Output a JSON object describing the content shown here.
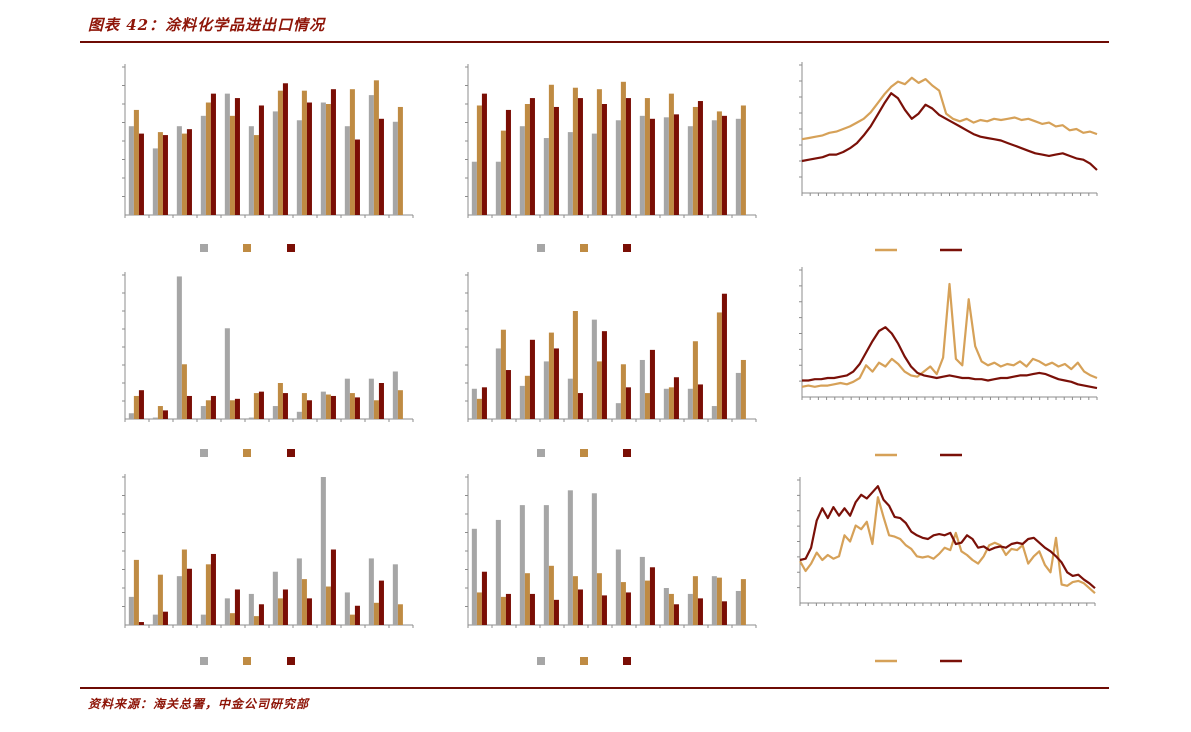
{
  "header": {
    "title": "图表 42：涂料化学品进出口情况"
  },
  "footer": {
    "source": "资料来源：海关总署，中金公司研究部"
  },
  "colors": {
    "gray": "#a6a6a6",
    "tan": "#bf8b43",
    "maroon": "#7a0e05",
    "line_tan": "#d6a158",
    "line_maroon": "#7a1008",
    "axis": "#8c8c8c",
    "title": "#8e1508",
    "rule": "#6e0b04",
    "background": "#ffffff"
  },
  "chart_data": [
    {
      "id": "r1c1-bar",
      "type": "bar",
      "title": "",
      "xlabel": "",
      "ylabel": "",
      "value_scale": "percent of plot height (no axis labels rendered in source)",
      "series": [
        {
          "name": "gray-bars",
          "color": "gray",
          "values": [
            60,
            45,
            60,
            67,
            82,
            60,
            70,
            64,
            76,
            60,
            81,
            63
          ]
        },
        {
          "name": "tan-bars",
          "color": "tan",
          "values": [
            71,
            56,
            55,
            76,
            67,
            54,
            84,
            84,
            75,
            85,
            91,
            73
          ]
        },
        {
          "name": "maroon-bars",
          "color": "maroon",
          "values": [
            55,
            54,
            58,
            82,
            79,
            74,
            89,
            76,
            85,
            51,
            65,
            null
          ]
        }
      ],
      "legend": {
        "style": "squares",
        "colors": [
          "gray",
          "tan",
          "maroon"
        ],
        "labels": [
          "",
          "",
          ""
        ]
      }
    },
    {
      "id": "r1c2-bar",
      "type": "bar",
      "title": "",
      "xlabel": "",
      "ylabel": "",
      "value_scale": "percent of plot height (no axis labels rendered in source)",
      "series": [
        {
          "name": "gray-bars",
          "color": "gray",
          "values": [
            36,
            36,
            60,
            52,
            56,
            55,
            64,
            67,
            66,
            60,
            64,
            65
          ]
        },
        {
          "name": "tan-bars",
          "color": "tan",
          "values": [
            74,
            57,
            75,
            88,
            86,
            85,
            90,
            79,
            82,
            73,
            70,
            74
          ]
        },
        {
          "name": "maroon-bars",
          "color": "maroon",
          "values": [
            82,
            71,
            79,
            73,
            79,
            75,
            79,
            65,
            68,
            77,
            67,
            null
          ]
        }
      ],
      "legend": {
        "style": "squares",
        "colors": [
          "gray",
          "tan",
          "maroon"
        ],
        "labels": [
          "",
          "",
          ""
        ]
      }
    },
    {
      "id": "r1c3-line",
      "type": "line",
      "title": "",
      "xlabel": "",
      "ylabel": "",
      "value_scale": "percent of plot height (no axis labels rendered in source)",
      "series": [
        {
          "name": "tan-line",
          "color": "line_tan",
          "values": [
            42,
            43,
            44,
            45,
            47,
            48,
            50,
            52,
            55,
            58,
            63,
            70,
            77,
            83,
            87,
            85,
            90,
            86,
            89,
            84,
            80,
            62,
            58,
            56,
            58,
            55,
            57,
            56,
            58,
            57,
            58,
            59,
            57,
            58,
            56,
            54,
            55,
            52,
            53,
            49,
            50,
            47,
            48,
            46
          ]
        },
        {
          "name": "maroon-line",
          "color": "line_maroon",
          "values": [
            25,
            26,
            27,
            28,
            30,
            30,
            32,
            35,
            39,
            45,
            52,
            61,
            70,
            78,
            74,
            65,
            58,
            62,
            69,
            66,
            61,
            58,
            55,
            52,
            49,
            46,
            44,
            43,
            42,
            41,
            39,
            37,
            35,
            33,
            31,
            30,
            29,
            30,
            31,
            29,
            27,
            26,
            23,
            18
          ]
        }
      ],
      "legend": {
        "style": "lines",
        "colors": [
          "line_tan",
          "line_maroon"
        ],
        "labels": [
          "",
          ""
        ]
      }
    },
    {
      "id": "r2c1-bar",
      "type": "bar",
      "title": "",
      "xlabel": "",
      "ylabel": "",
      "value_scale": "percent of plot height (no axis labels rendered in source)",
      "series": [
        {
          "name": "gray-bars",
          "color": "gray",
          "values": [
            4,
            1,
            99,
            9,
            63,
            1,
            9,
            5,
            19,
            28,
            28,
            33
          ]
        },
        {
          "name": "tan-bars",
          "color": "tan",
          "values": [
            16,
            9,
            38,
            13,
            13,
            18,
            25,
            18,
            17,
            18,
            13,
            20
          ]
        },
        {
          "name": "maroon-bars",
          "color": "maroon",
          "values": [
            20,
            6,
            16,
            16,
            14,
            19,
            18,
            13,
            16,
            15,
            25,
            null
          ]
        }
      ],
      "legend": {
        "style": "squares",
        "colors": [
          "gray",
          "tan",
          "maroon"
        ],
        "labels": [
          "",
          "",
          ""
        ]
      }
    },
    {
      "id": "r2c2-bar",
      "type": "bar",
      "title": "",
      "xlabel": "",
      "ylabel": "",
      "value_scale": "percent of plot height (no axis labels rendered in source)",
      "series": [
        {
          "name": "gray-bars",
          "color": "gray",
          "values": [
            21,
            49,
            23,
            40,
            28,
            69,
            11,
            41,
            21,
            21,
            9,
            32
          ]
        },
        {
          "name": "tan-bars",
          "color": "tan",
          "values": [
            14,
            62,
            30,
            60,
            75,
            40,
            38,
            18,
            22,
            54,
            74,
            41
          ]
        },
        {
          "name": "maroon-bars",
          "color": "maroon",
          "values": [
            22,
            34,
            55,
            49,
            18,
            61,
            22,
            48,
            29,
            24,
            87,
            null
          ]
        }
      ],
      "legend": {
        "style": "squares",
        "colors": [
          "gray",
          "tan",
          "maroon"
        ],
        "labels": [
          "",
          "",
          ""
        ]
      }
    },
    {
      "id": "r2c3-line",
      "type": "line",
      "title": "",
      "xlabel": "",
      "ylabel": "",
      "value_scale": "percent of plot height (no axis labels rendered in source)",
      "series": [
        {
          "name": "tan-line",
          "color": "line_tan",
          "values": [
            8,
            9,
            8,
            9,
            9,
            10,
            11,
            10,
            12,
            15,
            25,
            20,
            27,
            24,
            30,
            26,
            20,
            17,
            16,
            20,
            24,
            18,
            31,
            89,
            30,
            25,
            77,
            40,
            28,
            25,
            27,
            24,
            26,
            25,
            28,
            24,
            30,
            28,
            25,
            27,
            24,
            26,
            22,
            27,
            20,
            17,
            15
          ]
        },
        {
          "name": "maroon-line",
          "color": "line_maroon",
          "values": [
            13,
            13,
            14,
            14,
            15,
            15,
            16,
            17,
            20,
            26,
            35,
            44,
            52,
            55,
            50,
            42,
            32,
            24,
            19,
            17,
            16,
            15,
            16,
            17,
            16,
            15,
            15,
            14,
            14,
            13,
            14,
            15,
            15,
            16,
            17,
            17,
            18,
            19,
            18,
            16,
            14,
            13,
            12,
            10,
            9,
            8,
            7
          ]
        }
      ],
      "legend": {
        "style": "lines",
        "colors": [
          "line_tan",
          "line_maroon"
        ],
        "labels": [
          "",
          ""
        ]
      }
    },
    {
      "id": "r3c1-bar",
      "type": "bar",
      "title": "",
      "xlabel": "",
      "ylabel": "",
      "value_scale": "percent of plot height (no axis labels rendered in source)",
      "series": [
        {
          "name": "gray-bars",
          "color": "gray",
          "values": [
            19,
            7,
            33,
            7,
            18,
            21,
            36,
            45,
            100,
            22,
            45,
            41
          ]
        },
        {
          "name": "tan-bars",
          "color": "tan",
          "values": [
            44,
            34,
            51,
            41,
            8,
            6,
            18,
            31,
            26,
            7,
            15,
            14
          ]
        },
        {
          "name": "maroon-bars",
          "color": "maroon",
          "values": [
            2,
            9,
            38,
            48,
            24,
            14,
            24,
            18,
            51,
            13,
            30,
            null
          ]
        }
      ],
      "legend": {
        "style": "squares",
        "colors": [
          "gray",
          "tan",
          "maroon"
        ],
        "labels": [
          "",
          "",
          ""
        ]
      }
    },
    {
      "id": "r3c2-bar",
      "type": "bar",
      "title": "",
      "xlabel": "",
      "ylabel": "",
      "value_scale": "percent of plot height (no axis labels rendered in source)",
      "series": [
        {
          "name": "gray-bars",
          "color": "gray",
          "values": [
            65,
            71,
            81,
            81,
            91,
            89,
            51,
            46,
            25,
            21,
            33,
            23
          ]
        },
        {
          "name": "tan-bars",
          "color": "tan",
          "values": [
            22,
            19,
            35,
            40,
            33,
            35,
            29,
            30,
            21,
            33,
            32,
            31
          ]
        },
        {
          "name": "maroon-bars",
          "color": "maroon",
          "values": [
            36,
            21,
            21,
            17,
            24,
            20,
            22,
            39,
            14,
            18,
            16,
            null
          ]
        }
      ],
      "legend": {
        "style": "squares",
        "colors": [
          "gray",
          "tan",
          "maroon"
        ],
        "labels": [
          "",
          "",
          ""
        ]
      }
    },
    {
      "id": "r3c3-line",
      "type": "line",
      "title": "",
      "xlabel": "",
      "ylabel": "",
      "value_scale": "percent of plot height (no axis labels rendered in source)",
      "series": [
        {
          "name": "tan-line",
          "color": "line_tan",
          "values": [
            34,
            26,
            32,
            41,
            35,
            39,
            36,
            38,
            55,
            50,
            63,
            60,
            66,
            48,
            86,
            70,
            55,
            54,
            52,
            47,
            44,
            38,
            37,
            38,
            36,
            40,
            45,
            43,
            57,
            42,
            39,
            35,
            32,
            38,
            47,
            49,
            47,
            39,
            44,
            43,
            47,
            32,
            38,
            42,
            31,
            25,
            53,
            15,
            14,
            17,
            18,
            16,
            12,
            8
          ]
        },
        {
          "name": "maroon-line",
          "color": "line_maroon",
          "values": [
            35,
            36,
            45,
            67,
            77,
            69,
            78,
            71,
            77,
            71,
            82,
            88,
            85,
            90,
            95,
            84,
            79,
            70,
            69,
            65,
            58,
            55,
            53,
            52,
            55,
            56,
            55,
            57,
            48,
            49,
            55,
            52,
            45,
            46,
            43,
            45,
            46,
            45,
            48,
            49,
            48,
            52,
            53,
            49,
            45,
            42,
            38,
            33,
            25,
            22,
            23,
            19,
            16,
            12
          ]
        }
      ],
      "legend": {
        "style": "lines",
        "colors": [
          "line_tan",
          "line_maroon"
        ],
        "labels": [
          "",
          ""
        ]
      }
    }
  ]
}
